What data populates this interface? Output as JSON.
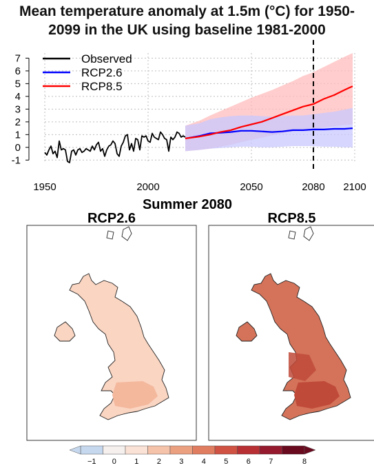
{
  "title_line1": "Mean temperature anomaly at 1.5m (°C) for 1950-",
  "title_line2": "2099 in the UK using  baseline 1981-2000",
  "chart_data": [
    {
      "type": "line",
      "title": "Mean temperature anomaly at 1.5m (°C) for 1950-2099 in the UK using  baseline 1981-2000",
      "xlim": [
        1950,
        2100
      ],
      "ylim": [
        -1.2,
        7.4
      ],
      "x_ticks": [
        "1950",
        "2000",
        "2050",
        "2080",
        "2100"
      ],
      "y_ticks": [
        "-1",
        "0",
        "1",
        "2",
        "3",
        "4",
        "5",
        "6",
        "7"
      ],
      "grid": true,
      "legend_position": "top-left",
      "vline_x": 2080,
      "series": [
        {
          "name": "Observed",
          "color": "#000000",
          "x": [
            1950,
            1951,
            1952,
            1953,
            1954,
            1955,
            1956,
            1957,
            1958,
            1959,
            1960,
            1961,
            1962,
            1963,
            1964,
            1965,
            1966,
            1967,
            1968,
            1969,
            1970,
            1971,
            1972,
            1973,
            1974,
            1975,
            1976,
            1977,
            1978,
            1979,
            1980,
            1981,
            1982,
            1983,
            1984,
            1985,
            1986,
            1987,
            1988,
            1989,
            1990,
            1991,
            1992,
            1993,
            1994,
            1995,
            1996,
            1997,
            1998,
            1999,
            2000,
            2001,
            2002,
            2003,
            2004,
            2005,
            2006,
            2007,
            2008,
            2009,
            2010,
            2011,
            2012,
            2013,
            2014,
            2015,
            2016,
            2017,
            2018
          ],
          "values": [
            -0.4,
            -0.6,
            -0.2,
            0.1,
            -0.5,
            -0.3,
            -0.8,
            0.5,
            -0.2,
            -0.1,
            -0.2,
            -1.1,
            -1.2,
            -0.3,
            -0.2,
            -0.6,
            -0.2,
            -0.1,
            -0.4,
            -0.3,
            -0.1,
            -0.2,
            -0.3,
            0.1,
            -0.2,
            0.2,
            0.4,
            -0.3,
            -0.1,
            -0.7,
            -0.2,
            0.1,
            0.2,
            0.5,
            0.3,
            -0.5,
            -0.7,
            0.1,
            0.4,
            0.9,
            1.0,
            -0.2,
            0.3,
            -0.3,
            0.7,
            0.6,
            -0.2,
            0.9,
            0.8,
            0.9,
            0.5,
            0.4,
            1.1,
            0.8,
            0.7,
            0.6,
            1.2,
            1.0,
            0.7,
            0.6,
            -0.3,
            0.8,
            0.6,
            0.8,
            1.2,
            1.1,
            0.8,
            0.9,
            0.8
          ]
        },
        {
          "name": "RCP2.6",
          "color": "#0000ff",
          "band_color": "#c8c8ff",
          "x": [
            2018,
            2025,
            2030,
            2035,
            2040,
            2045,
            2050,
            2055,
            2060,
            2065,
            2070,
            2075,
            2080,
            2085,
            2090,
            2095,
            2099
          ],
          "values": [
            0.7,
            0.9,
            1.1,
            1.15,
            1.2,
            1.3,
            1.3,
            1.25,
            1.2,
            1.25,
            1.35,
            1.35,
            1.4,
            1.4,
            1.45,
            1.45,
            1.5
          ],
          "band_low": [
            -0.3,
            -0.2,
            -0.1,
            -0.05,
            0.0,
            0.05,
            0.05,
            0.0,
            0.0,
            0.05,
            0.1,
            0.1,
            0.1,
            0.05,
            0.05,
            0.0,
            0.0
          ],
          "band_high": [
            1.7,
            1.9,
            2.2,
            2.35,
            2.45,
            2.5,
            2.5,
            2.45,
            2.4,
            2.45,
            2.5,
            2.5,
            2.6,
            2.7,
            2.8,
            2.95,
            3.1
          ]
        },
        {
          "name": "RCP8.5",
          "color": "#ff0000",
          "band_color": "#ffbcbc",
          "x": [
            2018,
            2025,
            2030,
            2035,
            2040,
            2045,
            2050,
            2055,
            2060,
            2065,
            2070,
            2075,
            2080,
            2085,
            2090,
            2095,
            2099
          ],
          "values": [
            0.7,
            0.85,
            1.0,
            1.2,
            1.35,
            1.6,
            1.8,
            2.0,
            2.3,
            2.6,
            2.9,
            3.2,
            3.4,
            3.8,
            4.1,
            4.5,
            4.8
          ],
          "band_low": [
            -0.3,
            -0.2,
            -0.1,
            0.05,
            0.2,
            0.4,
            0.6,
            0.75,
            0.95,
            1.1,
            1.25,
            1.35,
            1.45,
            1.55,
            1.65,
            1.75,
            1.8
          ],
          "band_high": [
            1.7,
            2.1,
            2.5,
            2.85,
            3.2,
            3.55,
            3.9,
            4.2,
            4.5,
            4.85,
            5.2,
            5.6,
            5.9,
            6.3,
            6.7,
            7.1,
            7.4
          ]
        }
      ]
    },
    {
      "type": "heatmap",
      "title": "Summer 2080",
      "panels": [
        "RCP2.6",
        "RCP8.5"
      ],
      "panel_fill_colors": [
        "#fad5c2",
        "#d4735a"
      ],
      "panel_hot_colors": [
        "#f4b89d",
        "#c04a3a"
      ],
      "colorbar": {
        "ticks": [
          "−1",
          "0",
          "1",
          "2",
          "3",
          "4",
          "5",
          "6",
          "7",
          "8"
        ],
        "colors": [
          "#c6d8ee",
          "#f5f0ee",
          "#fbe2d6",
          "#f5c2aa",
          "#eba080",
          "#e07d60",
          "#cf5243",
          "#b83034",
          "#951a2d",
          "#6a0a1f"
        ]
      }
    }
  ]
}
